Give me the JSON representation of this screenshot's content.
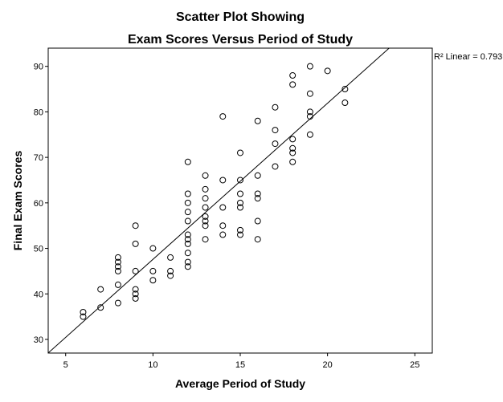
{
  "chart_data": {
    "type": "scatter",
    "title": "Scatter Plot Showing",
    "subtitle": "Exam Scores Versus Period of Study",
    "x_label": "Average Period of Study",
    "y_label": "Final Exam Scores",
    "annotation": "R² Linear = 0.793",
    "fit_line": {
      "intercept": 13.3,
      "slope": 3.43
    },
    "color": "#000000",
    "xlim": [
      4,
      26
    ],
    "xticks": [
      5,
      10,
      15,
      20,
      25
    ],
    "ylim": [
      27,
      94
    ],
    "yticks": [
      30,
      40,
      50,
      60,
      70,
      80,
      90
    ],
    "x": [
      6,
      6,
      7,
      7,
      8,
      8,
      8,
      8,
      8,
      8,
      9,
      9,
      9,
      9,
      9,
      9,
      10,
      10,
      10,
      11,
      11,
      11,
      12,
      12,
      12,
      12,
      12,
      12,
      12,
      12,
      12,
      12,
      12,
      13,
      13,
      13,
      13,
      13,
      13,
      13,
      13,
      14,
      14,
      14,
      14,
      14,
      15,
      15,
      15,
      15,
      15,
      15,
      15,
      16,
      16,
      16,
      16,
      16,
      16,
      17,
      17,
      17,
      17,
      18,
      18,
      18,
      18,
      18,
      18,
      19,
      19,
      19,
      19,
      19,
      20,
      21,
      21
    ],
    "values": [
      36,
      35,
      41,
      37,
      48,
      47,
      46,
      45,
      42,
      38,
      55,
      51,
      45,
      41,
      40,
      39,
      50,
      45,
      43,
      48,
      45,
      44,
      69,
      62,
      60,
      58,
      56,
      53,
      52,
      51,
      49,
      47,
      46,
      66,
      63,
      61,
      59,
      57,
      56,
      55,
      52,
      79,
      65,
      59,
      55,
      53,
      71,
      65,
      62,
      60,
      59,
      54,
      53,
      78,
      66,
      62,
      61,
      56,
      52,
      81,
      76,
      73,
      68,
      88,
      86,
      74,
      72,
      71,
      69,
      90,
      84,
      80,
      79,
      75,
      89,
      85,
      82
    ]
  }
}
